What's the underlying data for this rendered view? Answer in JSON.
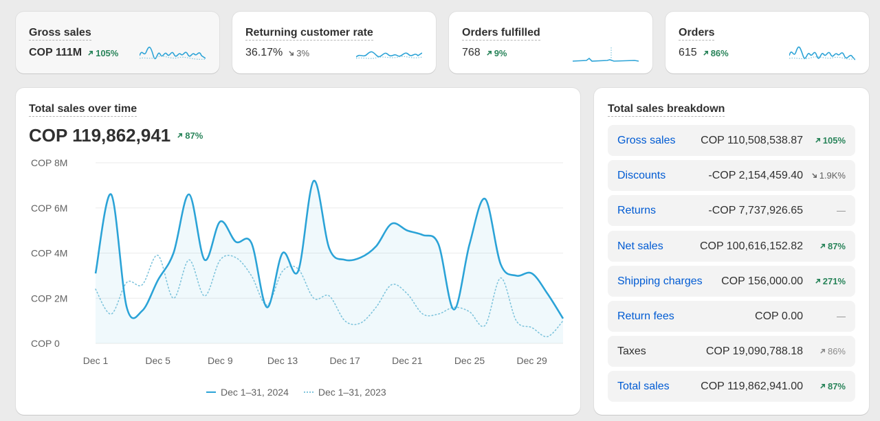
{
  "kpis": [
    {
      "title": "Gross sales",
      "value": "COP 111M",
      "delta": "105%",
      "dir": "up"
    },
    {
      "title": "Returning customer rate",
      "value": "36.17%",
      "delta": "3%",
      "dir": "down"
    },
    {
      "title": "Orders fulfilled",
      "value": "768",
      "delta": "9%",
      "dir": "up"
    },
    {
      "title": "Orders",
      "value": "615",
      "delta": "86%",
      "dir": "up"
    }
  ],
  "sales_chart": {
    "title": "Total sales over time",
    "value": "COP 119,862,941",
    "delta": "87%",
    "legend_current": "Dec 1–31, 2024",
    "legend_previous": "Dec 1–31, 2023"
  },
  "breakdown": {
    "title": "Total sales breakdown",
    "rows": [
      {
        "label": "Gross sales",
        "value": "COP 110,508,538.87",
        "delta": "105%",
        "dir": "up"
      },
      {
        "label": "Discounts",
        "value": "-COP 2,154,459.40",
        "delta": "1.9K%",
        "dir": "down"
      },
      {
        "label": "Returns",
        "value": "-COP 7,737,926.65",
        "delta": "—",
        "dir": "none"
      },
      {
        "label": "Net sales",
        "value": "COP 100,616,152.82",
        "delta": "87%",
        "dir": "up"
      },
      {
        "label": "Shipping charges",
        "value": "COP 156,000.00",
        "delta": "271%",
        "dir": "up"
      },
      {
        "label": "Return fees",
        "value": "COP 0.00",
        "delta": "—",
        "dir": "none"
      },
      {
        "label": "Taxes",
        "value": "COP 19,090,788.18",
        "delta": "86%",
        "dir": "up-muted"
      },
      {
        "label": "Total sales",
        "value": "COP 119,862,941.00",
        "delta": "87%",
        "dir": "up"
      }
    ]
  },
  "colors": {
    "current": "#2ba3d7",
    "previous": "#7fc4dc",
    "positive": "#29845a",
    "link": "#005bd3"
  },
  "chart_data": {
    "type": "line",
    "x": [
      1,
      2,
      3,
      4,
      5,
      6,
      7,
      8,
      9,
      10,
      11,
      12,
      13,
      14,
      15,
      16,
      17,
      18,
      19,
      20,
      21,
      22,
      23,
      24,
      25,
      26,
      27,
      28,
      29,
      30,
      31
    ],
    "tick_labels": [
      "Dec 1",
      "Dec 5",
      "Dec 9",
      "Dec 13",
      "Dec 17",
      "Dec 21",
      "Dec 25",
      "Dec 29"
    ],
    "tick_days": [
      1,
      5,
      9,
      13,
      17,
      21,
      25,
      29
    ],
    "y_ticks": [
      "COP 0",
      "COP 2M",
      "COP 4M",
      "COP 6M",
      "COP 8M"
    ],
    "ylim": [
      0,
      8000000
    ],
    "grid": true,
    "legend": "bottom",
    "series": [
      {
        "name": "Dec 1–31, 2024",
        "style": "solid",
        "values": [
          3100000,
          6600000,
          1600000,
          1450000,
          2800000,
          4000000,
          6600000,
          3700000,
          5400000,
          4500000,
          4450000,
          1600000,
          4000000,
          3200000,
          7200000,
          4200000,
          3700000,
          3800000,
          4300000,
          5300000,
          5000000,
          4800000,
          4400000,
          1500000,
          4400000,
          6400000,
          3500000,
          3000000,
          3100000,
          2200000,
          1100000
        ]
      },
      {
        "name": "Dec 1–31, 2023",
        "style": "dotted",
        "values": [
          2400000,
          1300000,
          2700000,
          2600000,
          3900000,
          2000000,
          3700000,
          2100000,
          3700000,
          3800000,
          3000000,
          1700000,
          3200000,
          3300000,
          2000000,
          2100000,
          1000000,
          900000,
          1600000,
          2600000,
          2200000,
          1300000,
          1300000,
          1600000,
          1400000,
          800000,
          2900000,
          1000000,
          700000,
          300000,
          1000000
        ]
      }
    ]
  }
}
